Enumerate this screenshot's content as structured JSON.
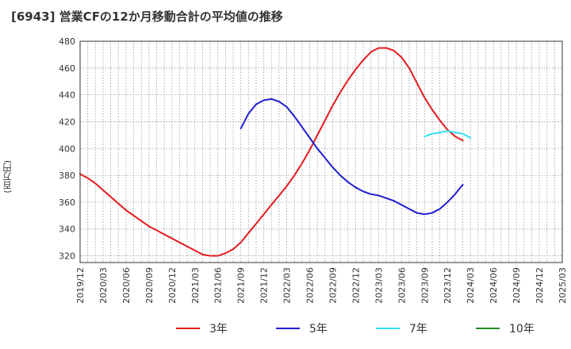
{
  "chart_data": {
    "type": "line",
    "title": "[6943]  営業CFの12か月移動合計の平均値の推移",
    "xlabel": "",
    "ylabel": "(百万円)",
    "ylim": [
      315,
      480
    ],
    "yticks": [
      320,
      340,
      360,
      380,
      400,
      420,
      440,
      460,
      480
    ],
    "xlim": [
      "2019-12",
      "2025-03"
    ],
    "xticks": [
      "2019/12",
      "2020/03",
      "2020/06",
      "2020/09",
      "2020/12",
      "2021/03",
      "2021/06",
      "2021/09",
      "2021/12",
      "2022/03",
      "2022/06",
      "2022/09",
      "2022/12",
      "2023/03",
      "2023/06",
      "2023/09",
      "2023/12",
      "2024/03",
      "2024/06",
      "2024/09",
      "2024/12",
      "2025/03"
    ],
    "grid": true,
    "legend_position": "bottom",
    "series": [
      {
        "name": "3年",
        "color": "#e41a1c",
        "points": [
          [
            "2019-12",
            381
          ],
          [
            "2020-01",
            378
          ],
          [
            "2020-02",
            374
          ],
          [
            "2020-03",
            369
          ],
          [
            "2020-04",
            364
          ],
          [
            "2020-05",
            359
          ],
          [
            "2020-06",
            354
          ],
          [
            "2020-07",
            350
          ],
          [
            "2020-08",
            346
          ],
          [
            "2020-09",
            342
          ],
          [
            "2020-10",
            339
          ],
          [
            "2020-11",
            336
          ],
          [
            "2020-12",
            333
          ],
          [
            "2021-01",
            330
          ],
          [
            "2021-02",
            327
          ],
          [
            "2021-03",
            324
          ],
          [
            "2021-04",
            321
          ],
          [
            "2021-05",
            320
          ],
          [
            "2021-06",
            320
          ],
          [
            "2021-07",
            322
          ],
          [
            "2021-08",
            325
          ],
          [
            "2021-09",
            330
          ],
          [
            "2021-10",
            337
          ],
          [
            "2021-11",
            344
          ],
          [
            "2021-12",
            351
          ],
          [
            "2022-01",
            358
          ],
          [
            "2022-02",
            365
          ],
          [
            "2022-03",
            372
          ],
          [
            "2022-04",
            380
          ],
          [
            "2022-05",
            389
          ],
          [
            "2022-06",
            399
          ],
          [
            "2022-07",
            410
          ],
          [
            "2022-08",
            421
          ],
          [
            "2022-09",
            432
          ],
          [
            "2022-10",
            442
          ],
          [
            "2022-11",
            451
          ],
          [
            "2022-12",
            459
          ],
          [
            "2023-01",
            466
          ],
          [
            "2023-02",
            472
          ],
          [
            "2023-03",
            475
          ],
          [
            "2023-04",
            475
          ],
          [
            "2023-05",
            473
          ],
          [
            "2023-06",
            468
          ],
          [
            "2023-07",
            460
          ],
          [
            "2023-08",
            449
          ],
          [
            "2023-09",
            438
          ],
          [
            "2023-10",
            429
          ],
          [
            "2023-11",
            421
          ],
          [
            "2023-12",
            414
          ],
          [
            "2024-01",
            409
          ],
          [
            "2024-02",
            406
          ]
        ]
      },
      {
        "name": "5年",
        "color": "#1f1fcf",
        "points": [
          [
            "2021-09",
            415
          ],
          [
            "2021-10",
            426
          ],
          [
            "2021-11",
            433
          ],
          [
            "2021-12",
            436
          ],
          [
            "2022-01",
            437
          ],
          [
            "2022-02",
            435
          ],
          [
            "2022-03",
            431
          ],
          [
            "2022-04",
            424
          ],
          [
            "2022-05",
            416
          ],
          [
            "2022-06",
            408
          ],
          [
            "2022-07",
            400
          ],
          [
            "2022-08",
            393
          ],
          [
            "2022-09",
            386
          ],
          [
            "2022-10",
            380
          ],
          [
            "2022-11",
            375
          ],
          [
            "2022-12",
            371
          ],
          [
            "2023-01",
            368
          ],
          [
            "2023-02",
            366
          ],
          [
            "2023-03",
            365
          ],
          [
            "2023-04",
            363
          ],
          [
            "2023-05",
            361
          ],
          [
            "2023-06",
            358
          ],
          [
            "2023-07",
            355
          ],
          [
            "2023-08",
            352
          ],
          [
            "2023-09",
            351
          ],
          [
            "2023-10",
            352
          ],
          [
            "2023-11",
            355
          ],
          [
            "2023-12",
            360
          ],
          [
            "2024-01",
            366
          ],
          [
            "2024-02",
            373
          ]
        ]
      },
      {
        "name": "7年",
        "color": "#33e0f0",
        "points": [
          [
            "2023-09",
            409
          ],
          [
            "2023-10",
            411
          ],
          [
            "2023-11",
            412
          ],
          [
            "2023-12",
            413
          ],
          [
            "2024-01",
            412
          ],
          [
            "2024-02",
            411
          ],
          [
            "2024-03",
            408
          ]
        ]
      },
      {
        "name": "10年",
        "color": "#228b22",
        "points": []
      }
    ]
  }
}
